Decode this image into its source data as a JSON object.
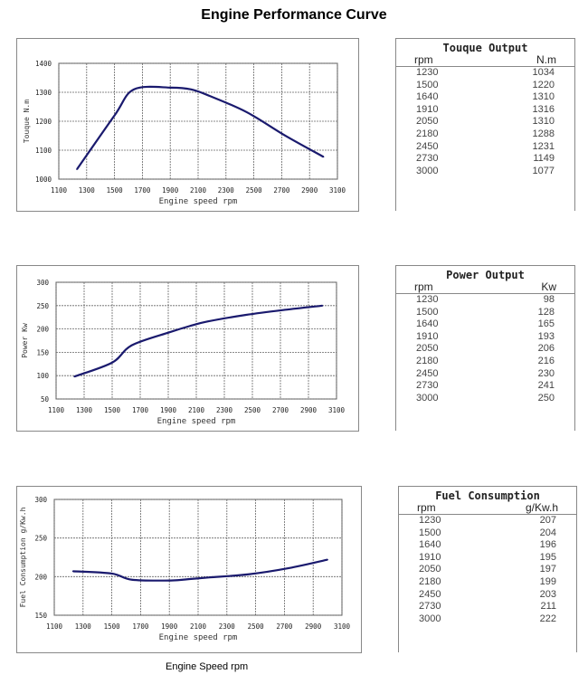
{
  "title": "Engine Performance Curve",
  "caption": "Engine Speed rpm",
  "chart_data": [
    {
      "type": "line",
      "xlabel": "Engine speed rpm",
      "ylabel": "Touque N.m",
      "xlim": [
        1100,
        3100
      ],
      "ylim": [
        1000,
        1400
      ],
      "xticks": [
        1100,
        1300,
        1500,
        1700,
        1900,
        2100,
        2300,
        2500,
        2700,
        2900,
        3100
      ],
      "yticks": [
        1000,
        1100,
        1200,
        1300,
        1400
      ],
      "grid": true,
      "color": "#1a1a6e",
      "x": [
        1230,
        1500,
        1640,
        1910,
        2050,
        2180,
        2450,
        2730,
        3000
      ],
      "y": [
        1034,
        1220,
        1310,
        1316,
        1310,
        1288,
        1231,
        1149,
        1077
      ]
    },
    {
      "type": "line",
      "xlabel": "Engine speed rpm",
      "ylabel": "Power Kw",
      "xlim": [
        1100,
        3100
      ],
      "ylim": [
        50,
        300
      ],
      "xticks": [
        1100,
        1300,
        1500,
        1700,
        1900,
        2100,
        2300,
        2500,
        2700,
        2900,
        3100
      ],
      "yticks": [
        50,
        100,
        150,
        200,
        250,
        300
      ],
      "grid": true,
      "color": "#1a1a6e",
      "x": [
        1230,
        1500,
        1640,
        1910,
        2050,
        2180,
        2450,
        2730,
        3000
      ],
      "y": [
        98,
        128,
        165,
        193,
        206,
        216,
        230,
        241,
        250
      ]
    },
    {
      "type": "line",
      "xlabel": "Engine speed rpm",
      "ylabel": "Fuel Consumption g/Kw.h",
      "xlim": [
        1100,
        3100
      ],
      "ylim": [
        150,
        300
      ],
      "xticks": [
        1100,
        1300,
        1500,
        1700,
        1900,
        2100,
        2300,
        2500,
        2700,
        2900,
        3100
      ],
      "yticks": [
        150,
        200,
        250,
        300
      ],
      "grid": true,
      "color": "#1a1a6e",
      "x": [
        1230,
        1500,
        1640,
        1910,
        2050,
        2180,
        2450,
        2730,
        3000
      ],
      "y": [
        207,
        204,
        196,
        195,
        197,
        199,
        203,
        211,
        222
      ]
    }
  ],
  "tables": [
    {
      "title": "Touque Output",
      "col1": "rpm",
      "col2": "N.m",
      "rows": [
        [
          "1230",
          "1034"
        ],
        [
          "1500",
          "1220"
        ],
        [
          "1640",
          "1310"
        ],
        [
          "1910",
          "1316"
        ],
        [
          "2050",
          "1310"
        ],
        [
          "2180",
          "1288"
        ],
        [
          "2450",
          "1231"
        ],
        [
          "2730",
          "1149"
        ],
        [
          "3000",
          "1077"
        ]
      ]
    },
    {
      "title": "Power Output",
      "col1": "rpm",
      "col2": "Kw",
      "rows": [
        [
          "1230",
          "98"
        ],
        [
          "1500",
          "128"
        ],
        [
          "1640",
          "165"
        ],
        [
          "1910",
          "193"
        ],
        [
          "2050",
          "206"
        ],
        [
          "2180",
          "216"
        ],
        [
          "2450",
          "230"
        ],
        [
          "2730",
          "241"
        ],
        [
          "3000",
          "250"
        ]
      ]
    },
    {
      "title": "Fuel Consumption",
      "col1": "rpm",
      "col2": "g/Kw.h",
      "rows": [
        [
          "1230",
          "207"
        ],
        [
          "1500",
          "204"
        ],
        [
          "1640",
          "196"
        ],
        [
          "1910",
          "195"
        ],
        [
          "2050",
          "197"
        ],
        [
          "2180",
          "199"
        ],
        [
          "2450",
          "203"
        ],
        [
          "2730",
          "211"
        ],
        [
          "3000",
          "222"
        ]
      ]
    }
  ]
}
